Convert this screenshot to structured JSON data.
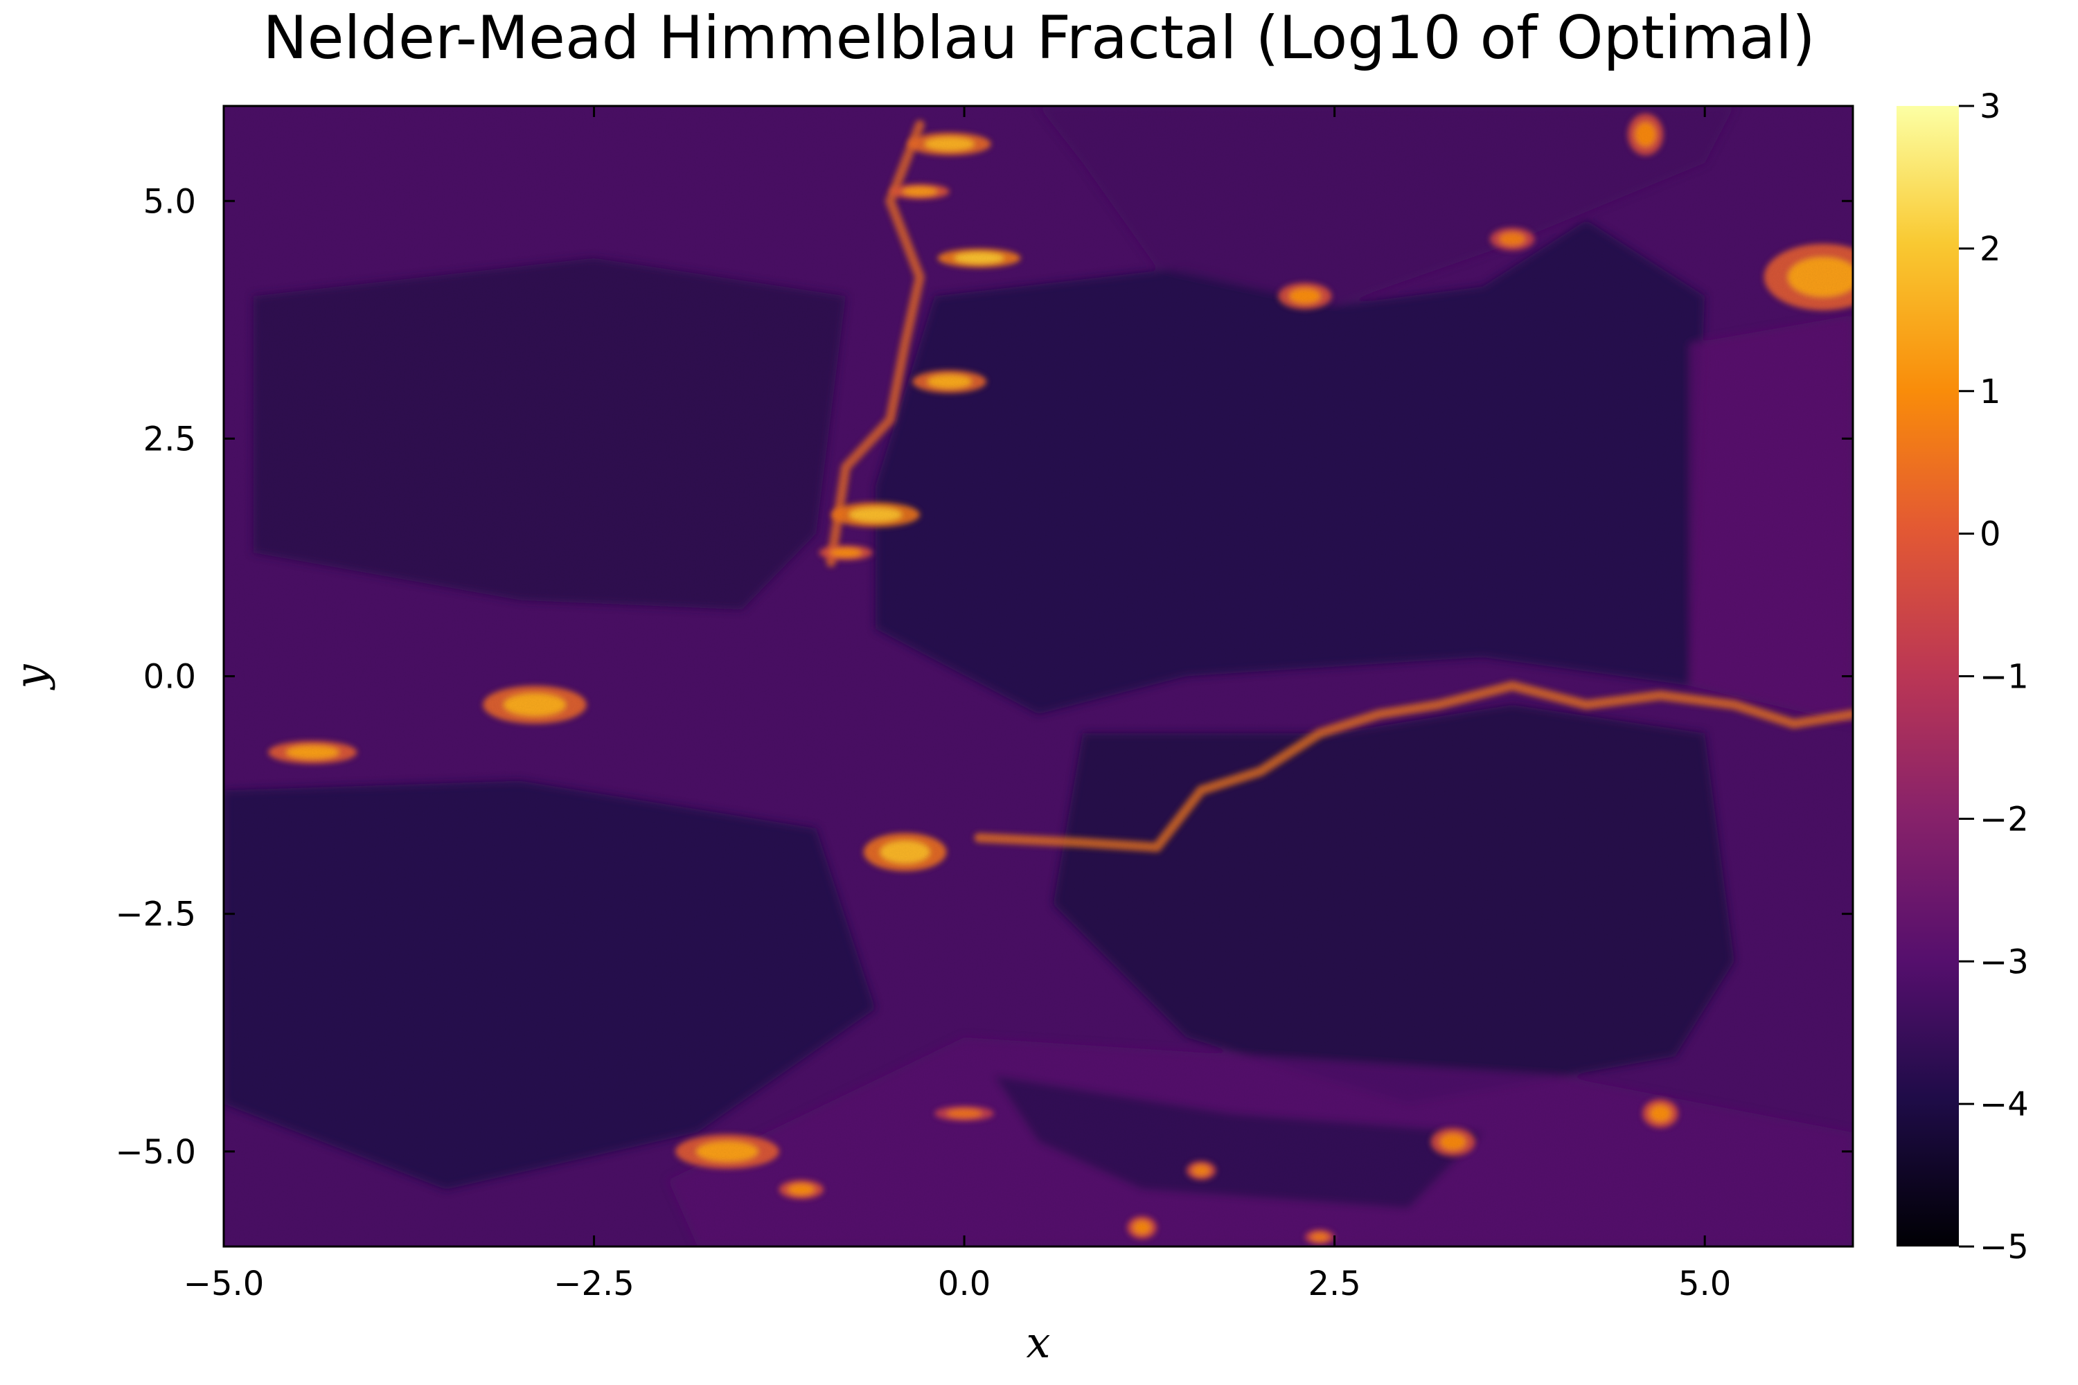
{
  "chart_data": {
    "type": "heatmap",
    "title": "Nelder-Mead Himmelblau Fractal (Log10 of Optimal)",
    "xlabel": "x",
    "ylabel": "y",
    "xlim": [
      -5,
      6
    ],
    "ylim": [
      -6,
      6
    ],
    "x_ticks": [
      -5.0,
      -2.5,
      0.0,
      2.5,
      5.0
    ],
    "x_tick_labels": [
      "−5.0",
      "−2.5",
      "0.0",
      "2.5",
      "5.0"
    ],
    "y_ticks": [
      5.0,
      2.5,
      0.0,
      -2.5,
      -5.0
    ],
    "y_tick_labels": [
      "5.0",
      "2.5",
      "0.0",
      "−2.5",
      "−5.0"
    ],
    "colorbar": {
      "range": [
        -5,
        3
      ],
      "ticks": [
        3,
        2,
        1,
        0,
        -1,
        -2,
        -3,
        -4,
        -5
      ],
      "tick_labels": [
        "3",
        "2",
        "1",
        "0",
        "−1",
        "−2",
        "−3",
        "−4",
        "−5"
      ],
      "colormap": "inferno"
    },
    "background_level": -3.2,
    "regions": [
      {
        "name": "dark-upper-right",
        "level": -3.9,
        "points": [
          [
            -0.2,
            4.0
          ],
          [
            1.5,
            4.3
          ],
          [
            2.5,
            3.9
          ],
          [
            3.5,
            4.1
          ],
          [
            4.2,
            4.8
          ],
          [
            5.0,
            4.0
          ],
          [
            4.9,
            -0.1
          ],
          [
            3.5,
            0.2
          ],
          [
            1.5,
            0.0
          ],
          [
            0.5,
            -0.4
          ],
          [
            -0.6,
            0.5
          ],
          [
            -0.6,
            2.0
          ]
        ]
      },
      {
        "name": "dark-lower-right",
        "level": -4.0,
        "points": [
          [
            0.8,
            -0.6
          ],
          [
            2.5,
            -0.6
          ],
          [
            3.7,
            -0.3
          ],
          [
            5.0,
            -0.6
          ],
          [
            5.2,
            -3.0
          ],
          [
            4.8,
            -4.0
          ],
          [
            3.0,
            -4.5
          ],
          [
            1.5,
            -3.8
          ],
          [
            0.6,
            -2.4
          ]
        ]
      },
      {
        "name": "dark-upper-left",
        "level": -3.8,
        "points": [
          [
            -4.8,
            4.0
          ],
          [
            -2.5,
            4.4
          ],
          [
            -0.8,
            4.0
          ],
          [
            -1.0,
            1.5
          ],
          [
            -1.5,
            0.7
          ],
          [
            -3.0,
            0.8
          ],
          [
            -4.8,
            1.3
          ]
        ]
      },
      {
        "name": "dark-lower-left",
        "level": -3.9,
        "points": [
          [
            -5.0,
            -1.2
          ],
          [
            -3.0,
            -1.1
          ],
          [
            -1.0,
            -1.6
          ],
          [
            -0.6,
            -3.5
          ],
          [
            -1.8,
            -4.8
          ],
          [
            -3.5,
            -5.4
          ],
          [
            -5.0,
            -4.5
          ]
        ]
      },
      {
        "name": "mid-arc-top",
        "level": -3.3,
        "points": [
          [
            0.5,
            6.0
          ],
          [
            5.2,
            6.0
          ],
          [
            5.0,
            5.4
          ],
          [
            3.6,
            4.5
          ],
          [
            2.5,
            3.9
          ],
          [
            1.3,
            4.3
          ],
          [
            0.8,
            5.4
          ]
        ]
      },
      {
        "name": "mid-right-edge",
        "level": -2.9,
        "points": [
          [
            4.9,
            3.5
          ],
          [
            6.0,
            3.8
          ],
          [
            6.0,
            -0.5
          ],
          [
            4.9,
            -0.1
          ]
        ]
      },
      {
        "name": "mid-bottom-band",
        "level": -3.0,
        "points": [
          [
            -2.0,
            -5.3
          ],
          [
            0.0,
            -3.8
          ],
          [
            2.0,
            -4.0
          ],
          [
            4.0,
            -4.2
          ],
          [
            6.0,
            -4.8
          ],
          [
            6.0,
            -6.0
          ],
          [
            -1.8,
            -6.0
          ]
        ]
      },
      {
        "name": "dark-bottom-center",
        "level": -3.7,
        "points": [
          [
            0.2,
            -4.2
          ],
          [
            1.8,
            -4.6
          ],
          [
            3.5,
            -4.8
          ],
          [
            3.0,
            -5.6
          ],
          [
            1.2,
            -5.4
          ],
          [
            0.5,
            -4.9
          ]
        ]
      }
    ],
    "hot_spots": [
      {
        "x": -0.1,
        "y": 5.6,
        "rx": 0.28,
        "ry": 0.12,
        "level": 1.6
      },
      {
        "x": -0.3,
        "y": 5.1,
        "rx": 0.2,
        "ry": 0.08,
        "level": 1.2
      },
      {
        "x": 0.1,
        "y": 4.4,
        "rx": 0.28,
        "ry": 0.1,
        "level": 1.9
      },
      {
        "x": -0.1,
        "y": 3.1,
        "rx": 0.25,
        "ry": 0.12,
        "level": 1.5
      },
      {
        "x": -0.6,
        "y": 1.7,
        "rx": 0.3,
        "ry": 0.13,
        "level": 1.8
      },
      {
        "x": -0.8,
        "y": 1.3,
        "rx": 0.18,
        "ry": 0.08,
        "level": 1.0
      },
      {
        "x": -2.9,
        "y": -0.3,
        "rx": 0.35,
        "ry": 0.2,
        "level": 1.5
      },
      {
        "x": -4.4,
        "y": -0.8,
        "rx": 0.3,
        "ry": 0.12,
        "level": 1.3
      },
      {
        "x": -0.4,
        "y": -1.85,
        "rx": 0.28,
        "ry": 0.2,
        "level": 1.7
      },
      {
        "x": 5.8,
        "y": 4.2,
        "rx": 0.4,
        "ry": 0.35,
        "level": 1.3
      },
      {
        "x": 2.3,
        "y": 4.0,
        "rx": 0.18,
        "ry": 0.14,
        "level": 1.0
      },
      {
        "x": 3.7,
        "y": 4.6,
        "rx": 0.15,
        "ry": 0.12,
        "level": 0.7
      },
      {
        "x": 4.6,
        "y": 5.7,
        "rx": 0.12,
        "ry": 0.22,
        "level": 0.9
      },
      {
        "x": -1.6,
        "y": -5.0,
        "rx": 0.35,
        "ry": 0.18,
        "level": 1.3
      },
      {
        "x": -1.1,
        "y": -5.4,
        "rx": 0.15,
        "ry": 0.1,
        "level": 1.0
      },
      {
        "x": 1.2,
        "y": -5.8,
        "rx": 0.1,
        "ry": 0.12,
        "level": 0.9
      },
      {
        "x": 1.6,
        "y": -5.2,
        "rx": 0.1,
        "ry": 0.1,
        "level": 0.8
      },
      {
        "x": 3.3,
        "y": -4.9,
        "rx": 0.15,
        "ry": 0.15,
        "level": 0.9
      },
      {
        "x": 4.7,
        "y": -4.6,
        "rx": 0.12,
        "ry": 0.15,
        "level": 1.0
      },
      {
        "x": 2.4,
        "y": -5.9,
        "rx": 0.1,
        "ry": 0.08,
        "level": 0.6
      },
      {
        "x": 0.0,
        "y": -4.6,
        "rx": 0.2,
        "ry": 0.08,
        "level": 0.5
      }
    ],
    "ridges": [
      {
        "name": "center-horizontal-ridge",
        "level": 0.6,
        "points": [
          [
            0.1,
            -1.7
          ],
          [
            0.8,
            -1.75
          ],
          [
            1.3,
            -1.8
          ],
          [
            1.6,
            -1.2
          ],
          [
            2.0,
            -1.0
          ],
          [
            2.4,
            -0.6
          ],
          [
            2.8,
            -0.4
          ],
          [
            3.2,
            -0.3
          ],
          [
            3.7,
            -0.1
          ],
          [
            4.2,
            -0.3
          ],
          [
            4.7,
            -0.2
          ],
          [
            5.2,
            -0.3
          ],
          [
            5.6,
            -0.5
          ],
          [
            6.0,
            -0.4
          ]
        ]
      },
      {
        "name": "upper-left-streak",
        "level": 0.4,
        "points": [
          [
            -0.3,
            5.8
          ],
          [
            -0.5,
            5.0
          ],
          [
            -0.3,
            4.2
          ],
          [
            -0.4,
            3.5
          ],
          [
            -0.5,
            2.7
          ],
          [
            -0.8,
            2.2
          ],
          [
            -0.9,
            1.2
          ]
        ]
      }
    ]
  }
}
